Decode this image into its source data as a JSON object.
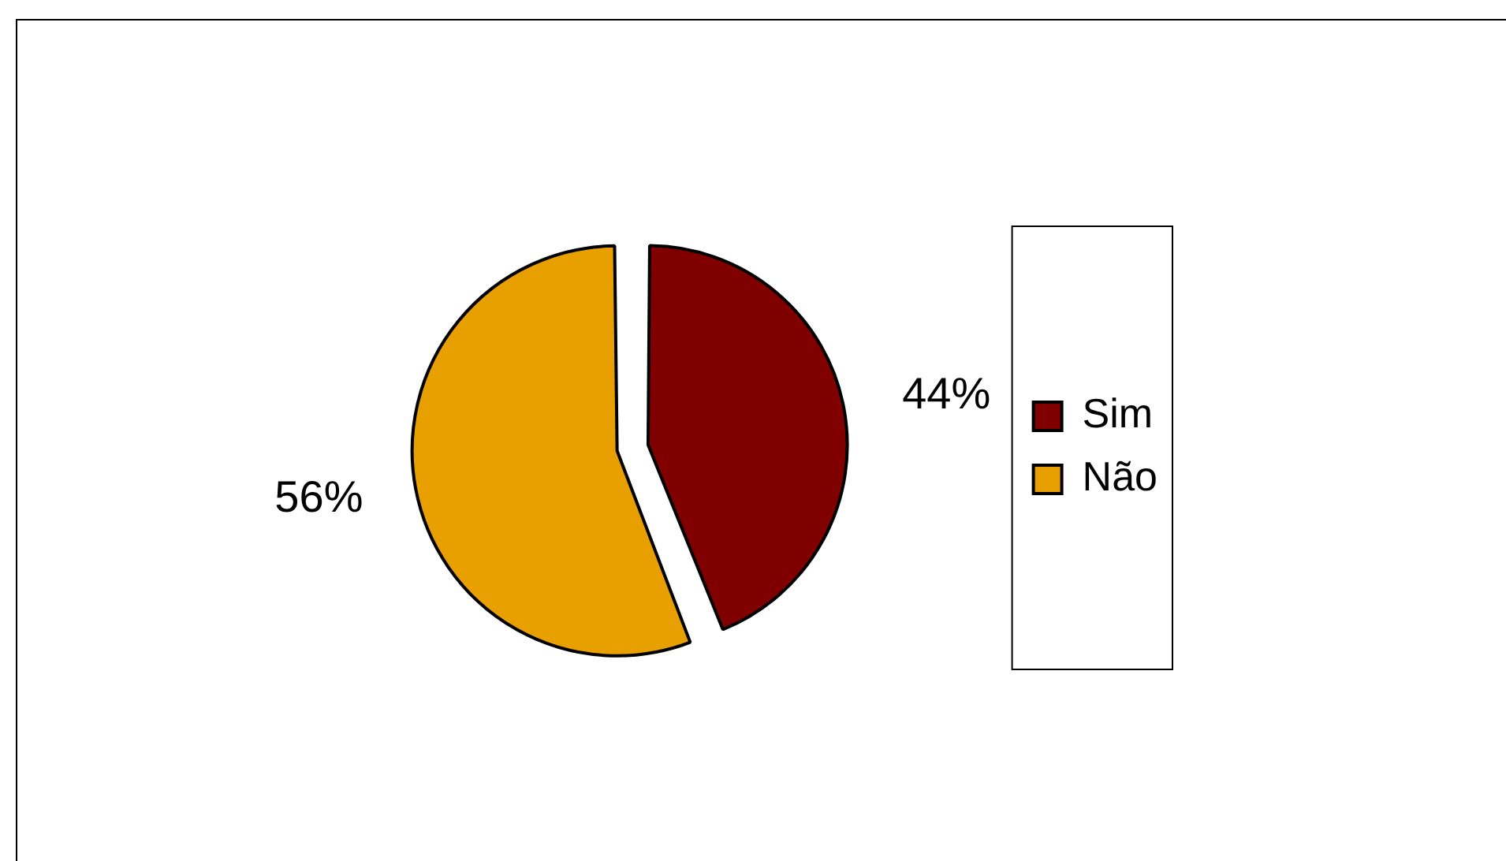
{
  "chart_data": {
    "type": "pie",
    "categories": [
      "Sim",
      "Não"
    ],
    "values": [
      44,
      56
    ],
    "colors": [
      "#800000",
      "#e8a000"
    ],
    "value_labels": [
      "44%",
      "56%"
    ],
    "legend": "right"
  }
}
